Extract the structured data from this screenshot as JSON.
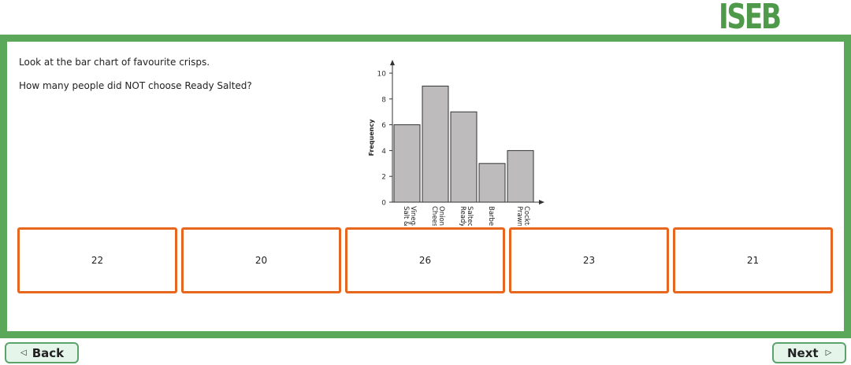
{
  "header": {
    "logo_text": "ISEB"
  },
  "question": {
    "line1": "Look at the bar chart of favourite crisps.",
    "line2": "How many people did NOT choose Ready Salted?"
  },
  "chart_data": {
    "type": "bar",
    "categories": [
      [
        "Salt &",
        "Vinegar"
      ],
      [
        "Cheese",
        "Onion"
      ],
      [
        "Ready",
        "Salted"
      ],
      [
        "Barbec"
      ],
      [
        "Prawn",
        "Cocktail"
      ]
    ],
    "values": [
      6,
      9,
      7,
      3,
      4
    ],
    "ylabel": "Frequency",
    "ylim": [
      0,
      10
    ],
    "yticks": [
      0,
      2,
      4,
      6,
      8,
      10
    ],
    "bar_color": "#bdbbbc"
  },
  "answers": [
    {
      "label": "22"
    },
    {
      "label": "20"
    },
    {
      "label": "26"
    },
    {
      "label": "23"
    },
    {
      "label": "21"
    }
  ],
  "nav": {
    "back_label": "Back",
    "next_label": "Next"
  },
  "colors": {
    "frame": "#5ba85b",
    "answer_border": "#e8671e",
    "nav_bg": "#e5f5ea"
  }
}
